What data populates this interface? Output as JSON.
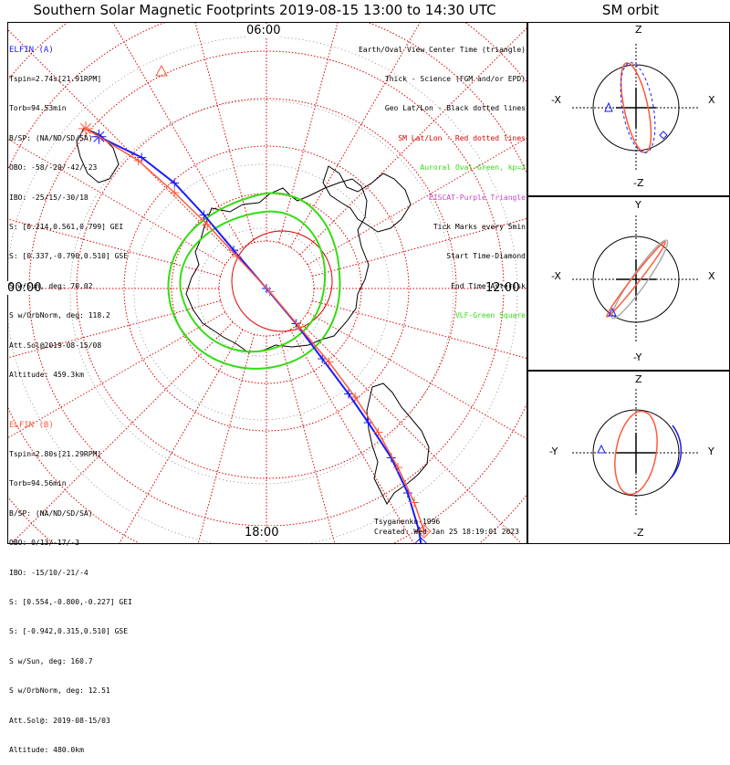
{
  "title": "Southern Solar Magnetic Footprints 2019-08-15 13:00 to 14:30 UTC",
  "orbit_title": "SM orbit",
  "colors": {
    "elfin_a": "#1a1aff",
    "elfin_b": "#ff5a3c",
    "grid": "#e00000",
    "oval": "#33dd11",
    "coast": "#000000",
    "orbit_gray": "#aaaaaa"
  },
  "mlt_labels": {
    "top": "06:00",
    "left": "00:00",
    "right": "12:00",
    "bottom": "18:00"
  },
  "elfin_a": {
    "header": "ELFIN (A)",
    "lines": [
      "Tspin=2.74s[21.91RPM]",
      "Torb=94.53min",
      "B/SP: (NA/ND/SD/SA)",
      "OBO: -58/-29/-42/-23",
      "IBO: -25/15/-30/18",
      "S: [0.214,0.561,0.799] GEI",
      "S: [0.337,-0.790,0.510] GSE",
      "S w/Sun, deg: 70.02",
      "S w/OrbNorm, deg: 118.2",
      "Att.Sol@2019-08-15/08",
      "Altitude: 459.3km"
    ]
  },
  "elfin_b": {
    "header": "ELFIN (B)",
    "lines": [
      "Tspin=2.80s[21.29RPM]",
      "Torb=94.56min",
      "B/SP: (NA/ND/SD/SA)",
      "OBO: 0/13/-17/-3",
      "IBO: -15/10/-21/-4",
      "S: [0.554,-0.800,-0.227] GEI",
      "S: [-0.942,0.315,0.510] GSE",
      "S w/Sun, deg: 160.7",
      "S w/OrbNorm, deg: 12.51",
      "Att.Sol@: 2019-08-15/03",
      "Altitude: 480.0km"
    ]
  },
  "legend": [
    {
      "text": "Earth/Oval View Center Time (triangle)",
      "color": "#000000"
    },
    {
      "text": "Thick - Science (FGM and/or EPD)",
      "color": "#000000"
    },
    {
      "text": "Geo Lat/Lon - Black dotted lines",
      "color": "#000000"
    },
    {
      "text": "SM Lat/Lon - Red dotted lines",
      "color": "#e00000"
    },
    {
      "text": "Auroral Oval-Green, kp=2",
      "color": "#33dd11"
    },
    {
      "text": "EISCAT-Purple Triangle",
      "color": "#cc44cc"
    },
    {
      "text": "Tick Marks every 5min",
      "color": "#000000"
    },
    {
      "text": "Start Time-Diamond",
      "color": "#000000"
    },
    {
      "text": "End Time-Asterisk",
      "color": "#000000"
    },
    {
      "text": "VLF-Green Square",
      "color": "#33dd11"
    }
  ],
  "footer": {
    "author": "Tsyganenko-1996",
    "created": "Created: Wed Jan 25 18:19:01 2023"
  },
  "orbit_panels": [
    {
      "top": "Z",
      "bottom": "-Z",
      "left": "-X",
      "right": "X"
    },
    {
      "top": "Y",
      "bottom": "-Y",
      "left": "-X",
      "right": "X"
    },
    {
      "top": "Z",
      "bottom": "-Z",
      "left": "-Y",
      "right": "Y"
    }
  ],
  "chart_data": [
    {
      "type": "scatter",
      "description_key": "polar footprint map",
      "title": "Southern Solar Magnetic Footprints 2019-08-15 13:00 to 14:30 UTC",
      "grid": true,
      "series": [
        {
          "name": "ELFIN (A)",
          "color": "#1a1aff",
          "x": [
            -1.02,
            -0.76,
            -0.56,
            -0.38,
            -0.2,
            0.0,
            0.18,
            0.34,
            0.5,
            0.62,
            0.76,
            0.86,
            0.93,
            0.94
          ],
          "y": [
            -0.95,
            -0.82,
            -0.66,
            -0.46,
            -0.24,
            0.0,
            0.22,
            0.44,
            0.66,
            0.84,
            1.06,
            1.28,
            1.52,
            1.6
          ]
        },
        {
          "name": "ELFIN (B)",
          "color": "#ff5a3c",
          "x": [
            -1.1,
            -0.78,
            -0.56,
            -0.36,
            -0.18,
            0.02,
            0.2,
            0.38,
            0.54,
            0.68,
            0.8,
            0.9,
            0.96
          ],
          "y": [
            -1.0,
            -0.8,
            -0.6,
            -0.4,
            -0.2,
            0.02,
            0.24,
            0.46,
            0.68,
            0.9,
            1.12,
            1.34,
            1.52
          ]
        }
      ]
    },
    {
      "type": "line",
      "title": "SM orbit",
      "series": [
        {
          "name": "ELFIN (A)",
          "color": "#1a1aff"
        },
        {
          "name": "ELFIN (B)",
          "color": "#ff5a3c"
        }
      ]
    }
  ]
}
